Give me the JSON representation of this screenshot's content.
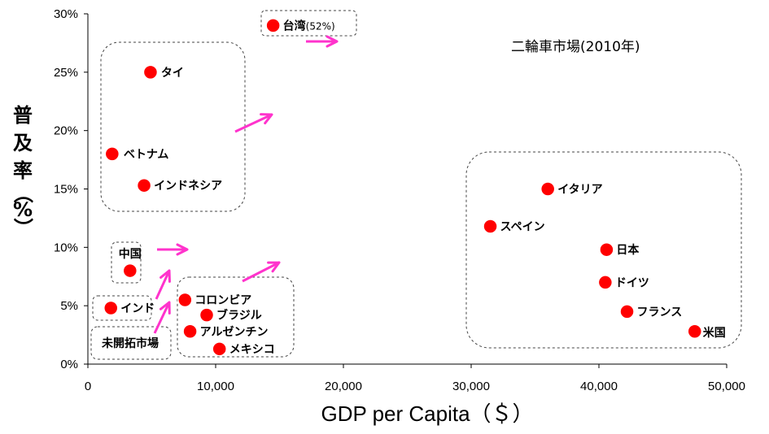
{
  "chart_data": {
    "type": "scatter",
    "title": "二輪車市場(2010年)",
    "xlabel": "GDP per Capita（＄）",
    "ylabel_chars": [
      "普",
      "及",
      "率",
      "（",
      "%",
      "）"
    ],
    "xlim": [
      0,
      50000
    ],
    "ylim": [
      0,
      30
    ],
    "x_ticks": [
      "0",
      "10,000",
      "20,000",
      "30,000",
      "40,000",
      "50,000"
    ],
    "y_ticks": [
      "0%",
      "5%",
      "10%",
      "15%",
      "20%",
      "25%",
      "30%"
    ],
    "grid": false,
    "point_color": "#ff0000",
    "arrow_color": "#ff33cc",
    "points": [
      {
        "label": "台湾",
        "suffix": "(52%)",
        "x": 14500,
        "y": 29
      },
      {
        "label": "タイ",
        "x": 4900,
        "y": 25
      },
      {
        "label": "ベトナム",
        "x": 1900,
        "y": 18
      },
      {
        "label": "インドネシア",
        "x": 4400,
        "y": 15.3
      },
      {
        "label": "中国",
        "x": 3300,
        "y": 8
      },
      {
        "label": "インド",
        "x": 1800,
        "y": 4.8
      },
      {
        "label": "コロンビア",
        "x": 7600,
        "y": 5.5
      },
      {
        "label": "ブラジル",
        "x": 9300,
        "y": 4.2
      },
      {
        "label": "アルゼンチン",
        "x": 8000,
        "y": 2.8
      },
      {
        "label": "メキシコ",
        "x": 10300,
        "y": 1.3
      },
      {
        "label": "イタリア",
        "x": 36000,
        "y": 15
      },
      {
        "label": "スペイン",
        "x": 31500,
        "y": 11.8
      },
      {
        "label": "日本",
        "x": 40600,
        "y": 9.8
      },
      {
        "label": "ドイツ",
        "x": 40500,
        "y": 7
      },
      {
        "label": "フランス",
        "x": 42200,
        "y": 4.5
      },
      {
        "label": "米国",
        "x": 47500,
        "y": 2.8
      }
    ],
    "group_labels": [
      "未開拓市場"
    ]
  }
}
